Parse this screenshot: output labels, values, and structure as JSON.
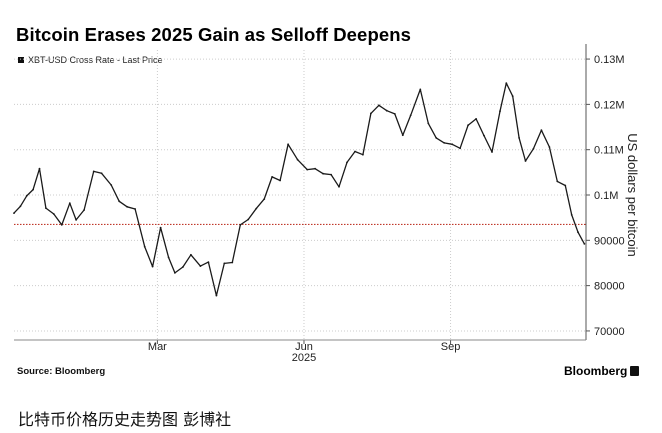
{
  "title": "Bitcoin Erases 2025 Gain as Selloff Deepens",
  "legend_label": "XBT-USD Cross Rate - Last Price",
  "source": "Source: Bloomberg",
  "brand": "Bloomberg",
  "caption": "比特币价格历史走势图 彭博社",
  "colors": {
    "line": "#1a1a1a",
    "reference": "#c0392b",
    "grid": "#cccccc"
  },
  "chart_data": {
    "type": "line",
    "title": "Bitcoin Erases 2025 Gain as Selloff Deepens",
    "ylabel": "US dollars per bitcoin",
    "ylim": [
      68000,
      132000
    ],
    "yticks": [
      70000,
      80000,
      90000,
      100000,
      110000,
      120000,
      130000
    ],
    "ytick_labels": [
      "70000",
      "80000",
      "90000",
      "0.1M",
      "0.11M",
      "0.12M",
      "0.13M"
    ],
    "xtick_labels": [
      "Mar",
      "Jun",
      "Sep"
    ],
    "xtick_sublabel": "2025",
    "xrange": [
      "2024-12-01",
      "2025-11-25"
    ],
    "xticks": [
      "2025-03-01",
      "2025-06-01",
      "2025-09-01"
    ],
    "grid": true,
    "reference_line": {
      "value": 93500,
      "style": "dotted"
    },
    "series": [
      {
        "name": "XBT-USD Cross Rate - Last Price",
        "x": [
          "2024-12-01",
          "2024-12-05",
          "2024-12-09",
          "2024-12-13",
          "2024-12-17",
          "2024-12-21",
          "2024-12-26",
          "2024-12-31",
          "2025-01-05",
          "2025-01-09",
          "2025-01-14",
          "2025-01-20",
          "2025-01-25",
          "2025-01-31",
          "2025-02-05",
          "2025-02-10",
          "2025-02-15",
          "2025-02-21",
          "2025-02-26",
          "2025-03-03",
          "2025-03-08",
          "2025-03-12",
          "2025-03-17",
          "2025-03-22",
          "2025-03-28",
          "2025-04-02",
          "2025-04-07",
          "2025-04-12",
          "2025-04-17",
          "2025-04-22",
          "2025-04-27",
          "2025-05-02",
          "2025-05-07",
          "2025-05-12",
          "2025-05-17",
          "2025-05-22",
          "2025-05-28",
          "2025-06-03",
          "2025-06-08",
          "2025-06-13",
          "2025-06-18",
          "2025-06-23",
          "2025-06-28",
          "2025-07-03",
          "2025-07-08",
          "2025-07-13",
          "2025-07-18",
          "2025-07-23",
          "2025-07-28",
          "2025-08-02",
          "2025-08-07",
          "2025-08-13",
          "2025-08-18",
          "2025-08-23",
          "2025-08-28",
          "2025-09-02",
          "2025-09-07",
          "2025-09-12",
          "2025-09-17",
          "2025-09-22",
          "2025-09-27",
          "2025-10-02",
          "2025-10-06",
          "2025-10-10",
          "2025-10-14",
          "2025-10-18",
          "2025-10-23",
          "2025-10-28",
          "2025-11-02",
          "2025-11-07",
          "2025-11-12",
          "2025-11-16",
          "2025-11-20",
          "2025-11-24"
        ],
        "values": [
          96000,
          97500,
          99800,
          101200,
          105800,
          97100,
          95800,
          93400,
          98200,
          94500,
          96700,
          105200,
          104800,
          102200,
          98600,
          97400,
          96900,
          88600,
          84200,
          92800,
          86200,
          82800,
          84100,
          86800,
          84300,
          85200,
          77800,
          84900,
          85100,
          93400,
          94600,
          97000,
          99100,
          104000,
          103200,
          111200,
          107800,
          105600,
          105800,
          104700,
          104500,
          101800,
          107200,
          109600,
          108900,
          118000,
          119800,
          118600,
          117900,
          113200,
          117600,
          123300,
          115800,
          112600,
          111500,
          111200,
          110300,
          115400,
          116800,
          113100,
          109500,
          118500,
          124700,
          121800,
          112600,
          107500,
          110200,
          114300,
          110600,
          103000,
          102100,
          95600,
          91800,
          89200
        ]
      }
    ]
  }
}
